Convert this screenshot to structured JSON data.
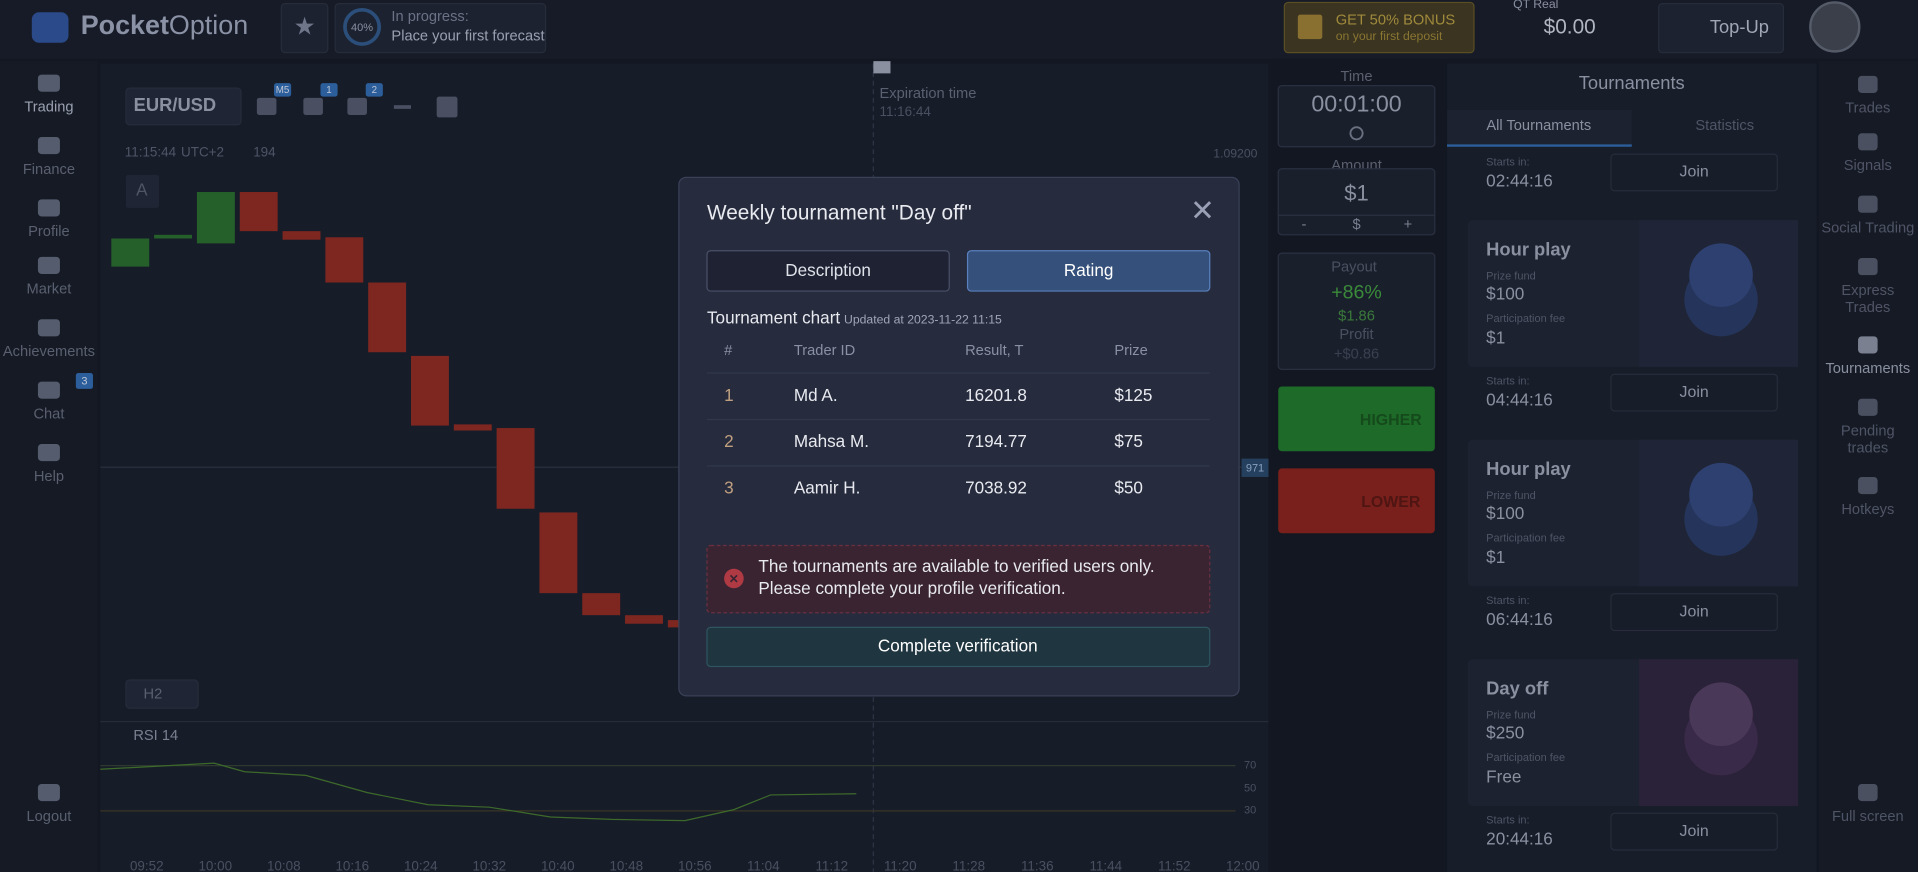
{
  "brand": {
    "first": "Pocket",
    "second": "Option"
  },
  "topbar": {
    "progress_pct": "40%",
    "progress_status": "In progress:",
    "progress_text": "Place your first forecast",
    "bonus_title": "GET 50% BONUS",
    "bonus_sub": "on your first deposit",
    "account_type": "QT Real",
    "balance": "$0.00",
    "topup": "Top-Up"
  },
  "left_nav": {
    "items": [
      "Trading",
      "Finance",
      "Profile",
      "Market",
      "Achievements",
      "Chat",
      "Help",
      "Logout"
    ],
    "chat_badge": "3"
  },
  "chart": {
    "pair": "EUR/USD",
    "timeframe_badge": "M5",
    "badges": [
      "1",
      "2"
    ],
    "time": "11:15:44",
    "timezone": "UTC+2",
    "online": "194",
    "marker": "A",
    "expiration_label": "Expiration time",
    "expiration_time": "11:16:44",
    "price_top": "1.09200",
    "price_current": "971",
    "interval": "H2",
    "indicator": "RSI 14",
    "rsi_ticks": [
      "70",
      "50",
      "30"
    ],
    "x_labels": [
      "09:52",
      "10:00",
      "10:08",
      "10:16",
      "10:24",
      "10:32",
      "10:40",
      "10:48",
      "10:56",
      "11:04",
      "11:12",
      "11:20",
      "11:28",
      "11:36",
      "11:44",
      "11:52",
      "12:00"
    ]
  },
  "trade_panel": {
    "time_label": "Time",
    "time": "00:01:00",
    "amount_label": "Amount",
    "amount": "$1",
    "minus": "-",
    "currency": "$",
    "plus": "+",
    "payout_label": "Payout",
    "payout": "+86%",
    "payout_amount": "$1.86",
    "profit_label": "Profit",
    "profit": "+$0.86",
    "higher": "HIGHER",
    "lower": "LOWER"
  },
  "tournaments": {
    "title": "Tournaments",
    "tabs": [
      "All Tournaments",
      "Statistics"
    ],
    "first": {
      "starts_label": "Starts in:",
      "starts": "02:44:16",
      "join": "Join"
    },
    "cards": [
      {
        "name": "Hour play",
        "prize_label": "Prize fund",
        "prize": "$100",
        "fee_label": "Participation fee",
        "fee": "$1",
        "starts_label": "Starts in:",
        "starts": "04:44:16",
        "join": "Join"
      },
      {
        "name": "Hour play",
        "prize_label": "Prize fund",
        "prize": "$100",
        "fee_label": "Participation fee",
        "fee": "$1",
        "starts_label": "Starts in:",
        "starts": "06:44:16",
        "join": "Join"
      },
      {
        "name": "Day off",
        "prize_label": "Prize fund",
        "prize": "$250",
        "fee_label": "Participation fee",
        "fee": "Free",
        "starts_label": "Starts in:",
        "starts": "20:44:16",
        "join": "Join"
      }
    ]
  },
  "right_nav": [
    [
      "Trades"
    ],
    [
      "Signals"
    ],
    [
      "Social Trading"
    ],
    [
      "Express",
      "Trades"
    ],
    [
      "Tournaments"
    ],
    [
      "Pending",
      "trades"
    ],
    [
      "Hotkeys"
    ],
    [
      "Full screen"
    ]
  ],
  "modal": {
    "title": "Weekly tournament \"Day off\"",
    "tabs": [
      "Description",
      "Rating"
    ],
    "chart_title": "Tournament chart",
    "updated": "Updated at 2023-11-22 11:15",
    "columns": [
      "#",
      "Trader ID",
      "Result, T",
      "Prize"
    ],
    "rows": [
      [
        "1",
        "Md A.",
        "16201.8",
        "$125"
      ],
      [
        "2",
        "Mahsa M.",
        "7194.77",
        "$75"
      ],
      [
        "3",
        "Aamir H.",
        "7038.92",
        "$50"
      ]
    ],
    "alert": [
      "The tournaments are available to verified users only.",
      "Please complete your profile verification."
    ],
    "button": "Complete verification"
  }
}
